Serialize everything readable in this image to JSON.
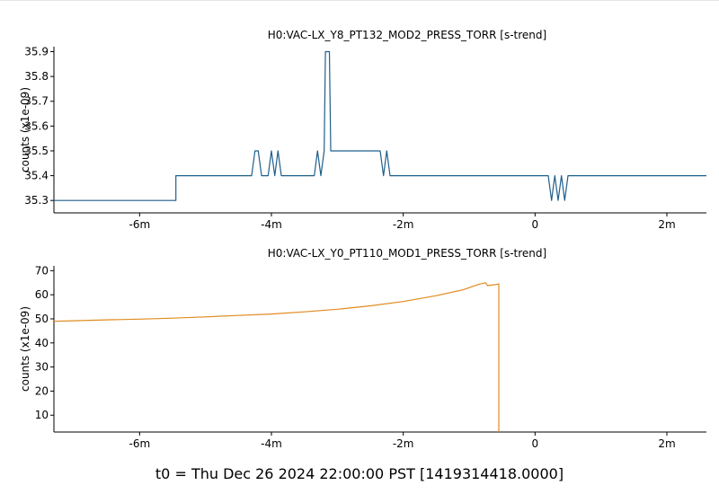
{
  "footer": {
    "t0_label": "t0 = Thu Dec 26 2024 22:00:00 PST [1419314418.0000]"
  },
  "chart_data": [
    {
      "type": "line",
      "title": "H0:VAC-LX_Y8_PT132_MOD2_PRESS_TORR [s-trend]",
      "ylabel": "counts (x1e-09)",
      "xlabel": "",
      "xlim": [
        -7.3,
        2.6
      ],
      "ylim": [
        35.25,
        35.92
      ],
      "grid": false,
      "color": "#1f5f8b",
      "x_ticks": [
        {
          "value": -6,
          "label": "-6m"
        },
        {
          "value": -4,
          "label": "-4m"
        },
        {
          "value": -2,
          "label": "-2m"
        },
        {
          "value": 0,
          "label": "0"
        },
        {
          "value": 2,
          "label": "2m"
        }
      ],
      "y_ticks": [
        {
          "value": 35.3,
          "label": "35.3"
        },
        {
          "value": 35.4,
          "label": "35.4"
        },
        {
          "value": 35.5,
          "label": "35.5"
        },
        {
          "value": 35.6,
          "label": "35.6"
        },
        {
          "value": 35.7,
          "label": "35.7"
        },
        {
          "value": 35.8,
          "label": "35.8"
        },
        {
          "value": 35.9,
          "label": "35.9"
        }
      ],
      "series": [
        {
          "points": [
            [
              -7.3,
              35.3
            ],
            [
              -5.45,
              35.3
            ],
            [
              -5.45,
              35.4
            ],
            [
              -4.3,
              35.4
            ],
            [
              -4.25,
              35.5
            ],
            [
              -4.2,
              35.5
            ],
            [
              -4.15,
              35.4
            ],
            [
              -4.05,
              35.4
            ],
            [
              -4.0,
              35.5
            ],
            [
              -3.95,
              35.4
            ],
            [
              -3.9,
              35.5
            ],
            [
              -3.85,
              35.4
            ],
            [
              -3.35,
              35.4
            ],
            [
              -3.3,
              35.5
            ],
            [
              -3.25,
              35.4
            ],
            [
              -3.2,
              35.5
            ],
            [
              -3.18,
              35.9
            ],
            [
              -3.12,
              35.9
            ],
            [
              -3.1,
              35.5
            ],
            [
              -2.35,
              35.5
            ],
            [
              -2.3,
              35.4
            ],
            [
              -2.25,
              35.5
            ],
            [
              -2.2,
              35.4
            ],
            [
              0.2,
              35.4
            ],
            [
              0.25,
              35.3
            ],
            [
              0.3,
              35.4
            ],
            [
              0.35,
              35.3
            ],
            [
              0.4,
              35.4
            ],
            [
              0.45,
              35.3
            ],
            [
              0.5,
              35.4
            ],
            [
              2.6,
              35.4
            ]
          ]
        }
      ]
    },
    {
      "type": "line",
      "title": "H0:VAC-LX_Y0_PT110_MOD1_PRESS_TORR [s-trend]",
      "ylabel": "counts (x1e-09)",
      "xlabel": "",
      "xlim": [
        -7.3,
        2.6
      ],
      "ylim": [
        3,
        72
      ],
      "grid": false,
      "color": "#e08a1e",
      "x_ticks": [
        {
          "value": -6,
          "label": "-6m"
        },
        {
          "value": -4,
          "label": "-4m"
        },
        {
          "value": -2,
          "label": "-2m"
        },
        {
          "value": 0,
          "label": "0"
        },
        {
          "value": 2,
          "label": "2m"
        }
      ],
      "y_ticks": [
        {
          "value": 10,
          "label": "10"
        },
        {
          "value": 20,
          "label": "20"
        },
        {
          "value": 30,
          "label": "30"
        },
        {
          "value": 40,
          "label": "40"
        },
        {
          "value": 50,
          "label": "50"
        },
        {
          "value": 60,
          "label": "60"
        },
        {
          "value": 70,
          "label": "70"
        }
      ],
      "series": [
        {
          "points": [
            [
              -7.3,
              49.0
            ],
            [
              -7.0,
              49.2
            ],
            [
              -6.5,
              49.6
            ],
            [
              -6.0,
              49.9
            ],
            [
              -5.5,
              50.3
            ],
            [
              -5.0,
              50.8
            ],
            [
              -4.5,
              51.4
            ],
            [
              -4.0,
              52.0
            ],
            [
              -3.5,
              52.9
            ],
            [
              -3.0,
              54.0
            ],
            [
              -2.5,
              55.4
            ],
            [
              -2.0,
              57.2
            ],
            [
              -1.5,
              59.6
            ],
            [
              -1.1,
              62.0
            ],
            [
              -0.85,
              64.4
            ],
            [
              -0.75,
              65.0
            ],
            [
              -0.72,
              63.8
            ],
            [
              -0.6,
              64.2
            ],
            [
              -0.55,
              64.5
            ],
            [
              -0.55,
              3
            ]
          ]
        }
      ]
    }
  ]
}
